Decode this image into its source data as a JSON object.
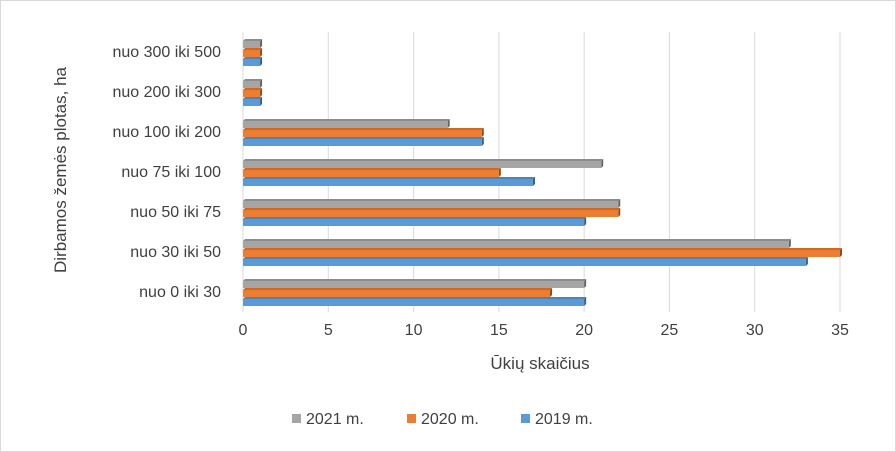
{
  "chart_data": {
    "type": "bar",
    "orientation": "horizontal",
    "categories": [
      "nuo 0 iki 30",
      "nuo 30 iki 50",
      "nuo 50 iki 75",
      "nuo 75 iki 100",
      "nuo 100 iki 200",
      "nuo 200 iki 300",
      "nuo 300 iki 500"
    ],
    "series": [
      {
        "name": "2021 m.",
        "color": "#a5a5a5",
        "values": [
          20,
          32,
          22,
          21,
          12,
          1,
          1
        ]
      },
      {
        "name": "2020 m.",
        "color": "#ed7d31",
        "values": [
          18,
          35,
          22,
          15,
          14,
          1,
          1
        ]
      },
      {
        "name": "2019 m.",
        "color": "#5b9bd5",
        "values": [
          20,
          33,
          20,
          17,
          14,
          1,
          1
        ]
      }
    ],
    "xlabel": "Ūkių skaičius",
    "ylabel": "Dirbamos žemės plotas, ha",
    "xlim": [
      0,
      35
    ],
    "xticks": [
      0,
      5,
      10,
      15,
      20,
      25,
      30,
      35
    ],
    "grid": "vertical",
    "legend_position": "bottom"
  }
}
